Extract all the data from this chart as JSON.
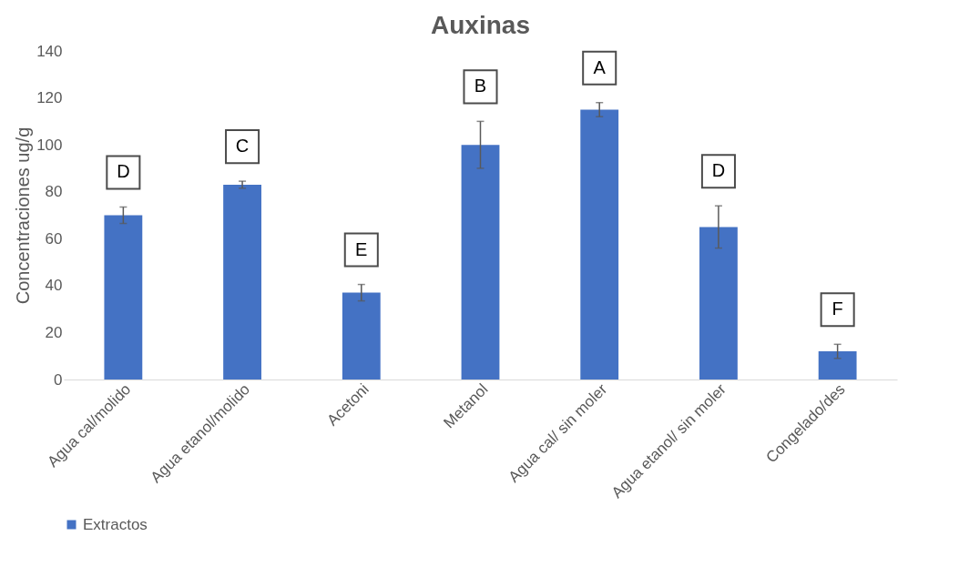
{
  "chart_data": {
    "type": "bar",
    "title": "Auxinas",
    "ylabel": "Concentraciones ug/g",
    "categories": [
      "Agua cal/molido",
      "Agua etanol/molido",
      "Acetoni",
      "Metanol",
      "Agua cal/ sin moler",
      "Agua etanol/ sin moler",
      "Congelado/des"
    ],
    "series": [
      {
        "name": "Extractos",
        "color": "#4472c4",
        "values": [
          70,
          83,
          37,
          100,
          115,
          65,
          12
        ],
        "errors": [
          3.5,
          1.5,
          3.5,
          10,
          3,
          9,
          3
        ]
      }
    ],
    "ylim": [
      0,
      140
    ],
    "yticks": [
      0,
      20,
      40,
      60,
      80,
      100,
      120,
      140
    ],
    "grid": false,
    "legend": "bottom",
    "annotations": [
      "D",
      "C",
      "E",
      "B",
      "A",
      "D",
      "F"
    ]
  }
}
